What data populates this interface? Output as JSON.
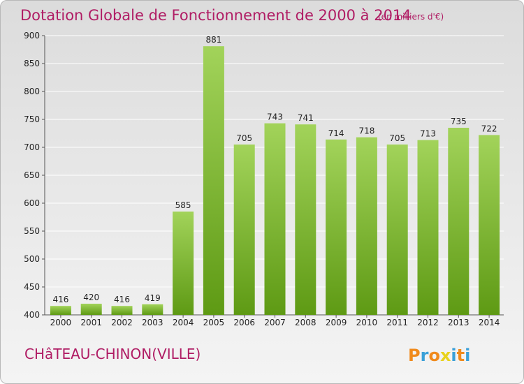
{
  "chart_data": {
    "type": "bar",
    "title": "Dotation Globale de Fonctionnement de 2000 à 2014",
    "subtitle": "(en milliers d'€)",
    "categories": [
      "2000",
      "2001",
      "2002",
      "2003",
      "2004",
      "2005",
      "2006",
      "2007",
      "2008",
      "2009",
      "2010",
      "2011",
      "2012",
      "2013",
      "2014"
    ],
    "values": [
      416,
      420,
      416,
      419,
      585,
      881,
      705,
      743,
      741,
      714,
      718,
      705,
      713,
      735,
      722
    ],
    "ylim": [
      400,
      900
    ],
    "yticks": [
      400,
      450,
      500,
      550,
      600,
      650,
      700,
      750,
      800,
      850,
      900
    ],
    "grid": true,
    "bar_color_top": "#a2d35a",
    "bar_color_bottom": "#5e9a14"
  },
  "footer": {
    "place_name": "CHâTEAU-CHINON(VILLE)"
  },
  "logo": {
    "text": "Proxiti",
    "colors": [
      "#f08a1c",
      "#3aa0d8",
      "#f08a1c",
      "#e8d21c",
      "#3aa0d8",
      "#f08a1c",
      "#3aa0d8"
    ]
  }
}
